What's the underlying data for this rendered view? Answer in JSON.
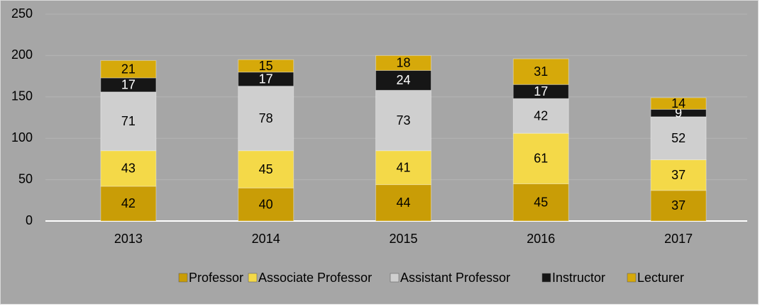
{
  "chart_data": {
    "type": "stacked_bar",
    "categories": [
      "2013",
      "2014",
      "2015",
      "2016",
      "2017"
    ],
    "series": [
      {
        "name": "Professor",
        "color": "#c99d06",
        "values": [
          42,
          40,
          44,
          45,
          37
        ]
      },
      {
        "name": "Associate Professor",
        "color": "#f4d948",
        "values": [
          43,
          45,
          41,
          61,
          37
        ]
      },
      {
        "name": "Assistant Professor",
        "color": "#cfcfcf",
        "values": [
          71,
          78,
          73,
          42,
          52
        ]
      },
      {
        "name": "Instructor",
        "color": "#161616",
        "values": [
          17,
          17,
          24,
          17,
          9
        ]
      },
      {
        "name": "Lecturer",
        "color": "#d6a90a",
        "values": [
          21,
          15,
          18,
          31,
          14
        ]
      }
    ],
    "ylim": [
      0,
      250
    ],
    "yticks": [
      0,
      50,
      100,
      150,
      200,
      250
    ],
    "grid": true,
    "legend": "bottom"
  }
}
